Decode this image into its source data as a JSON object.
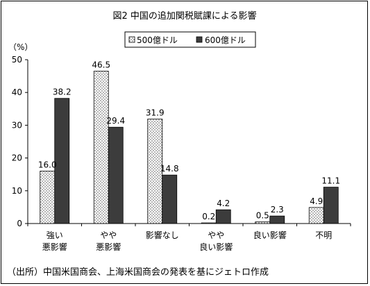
{
  "chart_data": {
    "type": "bar",
    "title": "図2 中国の追加関税賦課による影響",
    "ylabel": "（%）",
    "ylim": [
      0,
      50
    ],
    "yticks": [
      0,
      10,
      20,
      30,
      40,
      50
    ],
    "grid": false,
    "legend_position": "top",
    "categories": [
      [
        "強い",
        "悪影響"
      ],
      [
        "やや",
        "悪影響"
      ],
      [
        "影響なし"
      ],
      [
        "やや",
        "良い影響"
      ],
      [
        "良い影響"
      ],
      [
        "不明"
      ]
    ],
    "series": [
      {
        "name": "500億ドル",
        "values": [
          16.0,
          46.5,
          31.9,
          0.2,
          0.5,
          4.9
        ],
        "labels": [
          "16.0",
          "46.5",
          "31.9",
          "0.2",
          "0.5",
          "4.9"
        ],
        "fill": "dotted"
      },
      {
        "name": "600億ドル",
        "values": [
          38.2,
          29.4,
          14.8,
          4.2,
          2.3,
          11.1
        ],
        "labels": [
          "38.2",
          "29.4",
          "14.8",
          "4.2",
          "2.3",
          "11.1"
        ],
        "fill": "#3c3c3c"
      }
    ],
    "source": "（出所）中国米国商会、上海米国商会の発表を基にジェトロ作成"
  }
}
